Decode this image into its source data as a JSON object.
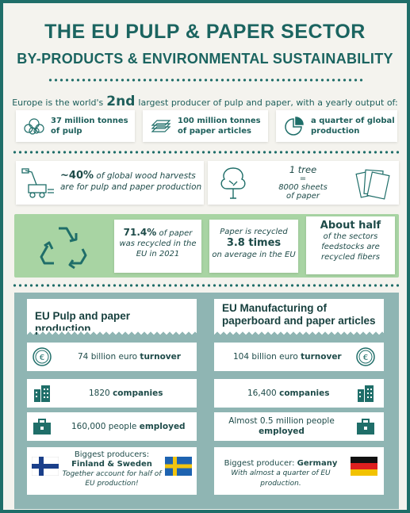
{
  "title": "THE EU PULP & PAPER SECTOR",
  "subtitle": "BY-PRODUCTS & ENVIRONMENTAL SUSTAINABILITY",
  "intro": {
    "before": "Europe is the world's",
    "rank": "2nd",
    "after": "largest producer of pulp and paper, with a yearly output of:"
  },
  "outputs": [
    {
      "line1": "37 million tonnes",
      "line2": "of pulp",
      "icon": "pulp-icon"
    },
    {
      "line1": "100 million tonnes",
      "line2": "of paper articles",
      "icon": "paper-stack-icon"
    },
    {
      "line1": "a quarter of global",
      "line2": "production",
      "icon": "pie-quarter-icon"
    }
  ],
  "wood": {
    "pct": "~40%",
    "text1": "of global wood harvests",
    "text2": "are for pulp and paper production"
  },
  "tree": {
    "line1": "1 tree",
    "eq": "=",
    "line2": "8000 sheets",
    "line3": "of paper"
  },
  "recycling": [
    {
      "bold": "71.4%",
      "text": "of paper",
      "text2": "was recycled in the",
      "text3": "EU in 2021"
    },
    {
      "text": "Paper is recycled",
      "bold": "3.8 times",
      "text2": "on average in the EU"
    },
    {
      "bold": "About half",
      "text": "of the sectors",
      "text2": "feedstocks are",
      "text3": "recycled fibers"
    }
  ],
  "left_col": {
    "heading": "EU Pulp and paper production",
    "turnover_num": "74 billion euro",
    "turnover_word": "turnover",
    "companies_num": "1820",
    "companies_word": "companies",
    "employed_num": "160,000 people",
    "employed_word": "employed",
    "producers_label": "Biggest producers:",
    "producers": "Finland & Sweden",
    "producers_note": "Together account for half of EU production!"
  },
  "right_col": {
    "heading": "EU Manufacturing of paperboard and paper articles",
    "turnover_num": "104 billion euro",
    "turnover_word": "turnover",
    "companies_num": "16,400",
    "companies_word": "companies",
    "employed_line1": "Almost 0.5 million people",
    "employed_word": "employed",
    "producer_label": "Biggest producer:",
    "producer": "Germany",
    "producer_note": "With almost a quarter of EU production."
  },
  "colors": {
    "teal": "#1f6e69",
    "green_band": "#a8d4a3",
    "panel": "#8fb5b3"
  }
}
